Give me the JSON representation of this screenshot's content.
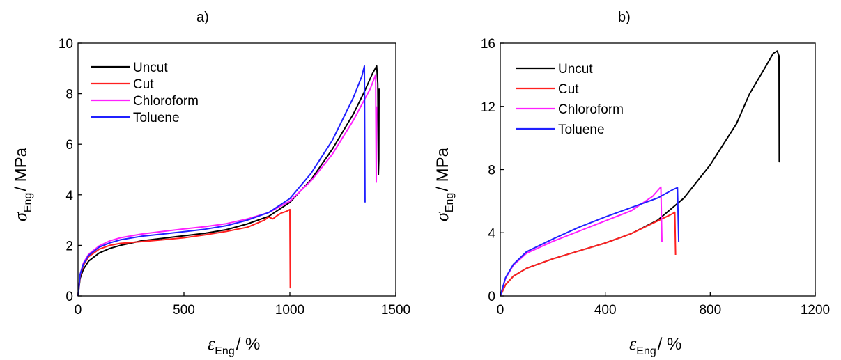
{
  "chart_data": [
    {
      "panel_label": "a)",
      "type": "line",
      "xlabel": {
        "symbol": "ε",
        "subscript": "Eng",
        "unit": "/ %"
      },
      "ylabel": {
        "symbol": "σ",
        "subscript": "Eng",
        "unit": "/ MPa"
      },
      "xlim": [
        0,
        1500
      ],
      "ylim": [
        0,
        10
      ],
      "xticks": [
        0,
        500,
        1000,
        1500
      ],
      "yticks": [
        0,
        2,
        4,
        6,
        8,
        10
      ],
      "legend_position": "top-left",
      "grid": false,
      "series": [
        {
          "name": "Uncut",
          "color": "#000000",
          "points": [
            [
              0,
              0
            ],
            [
              10,
              0.7
            ],
            [
              25,
              1.05
            ],
            [
              50,
              1.38
            ],
            [
              100,
              1.7
            ],
            [
              150,
              1.88
            ],
            [
              200,
              2.0
            ],
            [
              300,
              2.18
            ],
            [
              400,
              2.28
            ],
            [
              500,
              2.38
            ],
            [
              600,
              2.48
            ],
            [
              700,
              2.62
            ],
            [
              800,
              2.85
            ],
            [
              900,
              3.15
            ],
            [
              1000,
              3.7
            ],
            [
              1100,
              4.6
            ],
            [
              1200,
              5.8
            ],
            [
              1300,
              7.2
            ],
            [
              1350,
              8.05
            ],
            [
              1390,
              8.8
            ],
            [
              1410,
              9.1
            ],
            [
              1415,
              8.4
            ],
            [
              1418,
              4.8
            ],
            [
              1420,
              5.4
            ],
            [
              1421,
              8.2
            ]
          ]
        },
        {
          "name": "Cut",
          "color": "#ff2020",
          "points": [
            [
              0,
              0
            ],
            [
              10,
              0.8
            ],
            [
              25,
              1.2
            ],
            [
              50,
              1.55
            ],
            [
              100,
              1.85
            ],
            [
              150,
              2.0
            ],
            [
              200,
              2.08
            ],
            [
              300,
              2.15
            ],
            [
              400,
              2.22
            ],
            [
              500,
              2.3
            ],
            [
              600,
              2.42
            ],
            [
              700,
              2.55
            ],
            [
              800,
              2.72
            ],
            [
              880,
              3.0
            ],
            [
              900,
              3.12
            ],
            [
              920,
              3.05
            ],
            [
              940,
              3.18
            ],
            [
              960,
              3.28
            ],
            [
              985,
              3.35
            ],
            [
              1000,
              3.42
            ],
            [
              1002,
              0.3
            ]
          ]
        },
        {
          "name": "Chloroform",
          "color": "#ff20ff",
          "points": [
            [
              0,
              0
            ],
            [
              10,
              0.85
            ],
            [
              25,
              1.3
            ],
            [
              50,
              1.65
            ],
            [
              100,
              1.98
            ],
            [
              150,
              2.18
            ],
            [
              200,
              2.3
            ],
            [
              300,
              2.45
            ],
            [
              400,
              2.55
            ],
            [
              500,
              2.65
            ],
            [
              600,
              2.74
            ],
            [
              700,
              2.86
            ],
            [
              800,
              3.05
            ],
            [
              900,
              3.3
            ],
            [
              1000,
              3.75
            ],
            [
              1100,
              4.55
            ],
            [
              1200,
              5.6
            ],
            [
              1300,
              6.95
            ],
            [
              1380,
              8.2
            ],
            [
              1405,
              8.75
            ],
            [
              1408,
              4.5
            ],
            [
              1410,
              7.5
            ]
          ]
        },
        {
          "name": "Toluene",
          "color": "#2020ff",
          "points": [
            [
              0,
              0
            ],
            [
              10,
              0.85
            ],
            [
              25,
              1.25
            ],
            [
              50,
              1.6
            ],
            [
              100,
              1.93
            ],
            [
              150,
              2.1
            ],
            [
              200,
              2.22
            ],
            [
              300,
              2.36
            ],
            [
              400,
              2.45
            ],
            [
              500,
              2.54
            ],
            [
              600,
              2.64
            ],
            [
              700,
              2.78
            ],
            [
              800,
              3.0
            ],
            [
              900,
              3.3
            ],
            [
              1000,
              3.85
            ],
            [
              1100,
              4.85
            ],
            [
              1200,
              6.15
            ],
            [
              1300,
              7.85
            ],
            [
              1340,
              8.7
            ],
            [
              1352,
              9.1
            ],
            [
              1355,
              3.7
            ]
          ]
        }
      ]
    },
    {
      "panel_label": "b)",
      "type": "line",
      "xlabel": {
        "symbol": "ε",
        "subscript": "Eng",
        "unit": "/ %"
      },
      "ylabel": {
        "symbol": "σ",
        "subscript": "Eng",
        "unit": "/ MPa"
      },
      "xlim": [
        0,
        1200
      ],
      "ylim": [
        0,
        16
      ],
      "xticks": [
        0,
        400,
        800,
        1200
      ],
      "yticks": [
        0,
        4,
        8,
        12,
        16
      ],
      "legend_position": "top-left",
      "grid": false,
      "series": [
        {
          "name": "Uncut",
          "color": "#000000",
          "points": [
            [
              0,
              0
            ],
            [
              20,
              0.7
            ],
            [
              50,
              1.25
            ],
            [
              100,
              1.75
            ],
            [
              200,
              2.35
            ],
            [
              300,
              2.85
            ],
            [
              400,
              3.35
            ],
            [
              500,
              3.95
            ],
            [
              600,
              4.8
            ],
            [
              700,
              6.2
            ],
            [
              800,
              8.3
            ],
            [
              900,
              10.9
            ],
            [
              950,
              12.8
            ],
            [
              1000,
              14.2
            ],
            [
              1040,
              15.35
            ],
            [
              1055,
              15.5
            ],
            [
              1062,
              15.2
            ],
            [
              1063,
              8.5
            ],
            [
              1064,
              11.8
            ]
          ]
        },
        {
          "name": "Cut",
          "color": "#ff2020",
          "points": [
            [
              0,
              0
            ],
            [
              20,
              0.7
            ],
            [
              50,
              1.25
            ],
            [
              100,
              1.75
            ],
            [
              200,
              2.35
            ],
            [
              300,
              2.85
            ],
            [
              400,
              3.35
            ],
            [
              500,
              3.95
            ],
            [
              600,
              4.75
            ],
            [
              650,
              5.15
            ],
            [
              665,
              5.3
            ],
            [
              668,
              2.6
            ]
          ]
        },
        {
          "name": "Chloroform",
          "color": "#ff20ff",
          "points": [
            [
              0,
              0
            ],
            [
              20,
              1.1
            ],
            [
              50,
              1.95
            ],
            [
              100,
              2.7
            ],
            [
              200,
              3.45
            ],
            [
              300,
              4.1
            ],
            [
              400,
              4.75
            ],
            [
              500,
              5.4
            ],
            [
              580,
              6.3
            ],
            [
              612,
              6.9
            ],
            [
              616,
              3.4
            ]
          ]
        },
        {
          "name": "Toluene",
          "color": "#2020ff",
          "points": [
            [
              0,
              0
            ],
            [
              20,
              1.15
            ],
            [
              50,
              2.0
            ],
            [
              100,
              2.8
            ],
            [
              200,
              3.6
            ],
            [
              300,
              4.35
            ],
            [
              400,
              5.0
            ],
            [
              500,
              5.6
            ],
            [
              600,
              6.2
            ],
            [
              660,
              6.75
            ],
            [
              675,
              6.85
            ],
            [
              680,
              3.4
            ]
          ]
        }
      ]
    }
  ]
}
